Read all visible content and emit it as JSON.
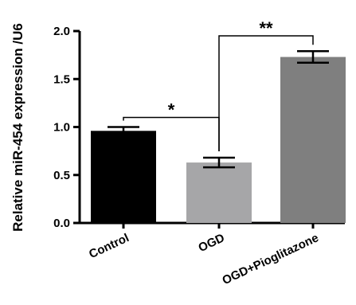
{
  "chart_data": {
    "type": "bar",
    "title": "",
    "xlabel": "",
    "ylabel": "Relative miR-454 expression /U6",
    "categories": [
      "Control",
      "OGD",
      "OGD+Pioglitazone"
    ],
    "values": [
      0.96,
      0.63,
      1.73
    ],
    "errors": [
      0.04,
      0.05,
      0.06
    ],
    "ylim": [
      0,
      2.0
    ],
    "yticks": [
      "0.0",
      "0.5",
      "1.0",
      "1.5",
      "2.0"
    ],
    "bar_colors": [
      "#000000",
      "#a6a6a8",
      "#7f7f7f"
    ],
    "grid": false,
    "legend": "none",
    "significance": [
      {
        "from": 0,
        "to": 1,
        "label": "*",
        "level": 1.1
      },
      {
        "from": 1,
        "to": 2,
        "label": "**",
        "level": 1.95
      }
    ]
  }
}
